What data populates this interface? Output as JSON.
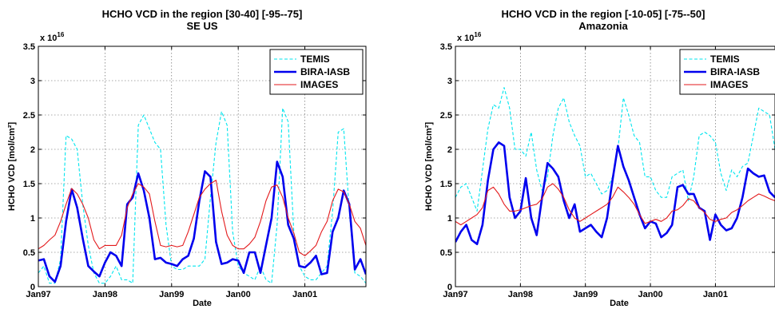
{
  "chart_data": [
    {
      "type": "line",
      "title": "HCHO VCD in the region [30-40] [-95--75]",
      "subtitle": "SE US",
      "xlabel": "Date",
      "ylabel": "HCHO VCD [mol/cm²]",
      "y_multiplier_label": "x 10",
      "y_multiplier_exp": "16",
      "x_unit": "months since Jan97",
      "xlim": [
        0,
        59
      ],
      "ylim": [
        0,
        3.5
      ],
      "x_ticks": [
        0,
        12,
        24,
        36,
        48
      ],
      "x_tick_labels": [
        "Jan97",
        "Jan98",
        "Jan99",
        "Jan00",
        "Jan01"
      ],
      "y_ticks": [
        0,
        0.5,
        1,
        1.5,
        2,
        2.5,
        3,
        3.5
      ],
      "y_tick_labels": [
        "0",
        "0.5",
        "1",
        "1.5",
        "2",
        "2.5",
        "3",
        "3.5"
      ],
      "grid": true,
      "legend_position": "top-right",
      "series": [
        {
          "name": "TEMIS",
          "color": "#00e5ee",
          "style": "dashed",
          "values": [
            0.2,
            0.3,
            0.05,
            0.05,
            0.4,
            2.2,
            2.15,
            2.0,
            1.2,
            0.6,
            0.2,
            0.05,
            0.05,
            0.15,
            0.3,
            0.1,
            0.1,
            0.05,
            2.35,
            2.5,
            2.3,
            2.1,
            2.0,
            0.9,
            0.3,
            0.25,
            0.25,
            0.3,
            0.3,
            0.3,
            0.4,
            1.3,
            2.1,
            2.55,
            2.35,
            0.8,
            0.3,
            0.2,
            0.15,
            0.1,
            0.3,
            0.1,
            0.05,
            0.9,
            2.6,
            2.4,
            0.8,
            0.3,
            0.15,
            0.1,
            0.1,
            0.2,
            0.3,
            1.1,
            2.25,
            2.3,
            1.1,
            0.2,
            0.15,
            0.05
          ]
        },
        {
          "name": "BIRA-IASB",
          "color": "#0000ee",
          "style": "solid",
          "values": [
            0.38,
            0.4,
            0.15,
            0.07,
            0.3,
            0.95,
            1.42,
            1.15,
            0.7,
            0.3,
            0.22,
            0.15,
            0.35,
            0.5,
            0.45,
            0.3,
            1.2,
            1.3,
            1.65,
            1.4,
            1.0,
            0.4,
            0.42,
            0.35,
            0.33,
            0.3,
            0.4,
            0.45,
            0.7,
            1.25,
            1.68,
            1.6,
            0.65,
            0.33,
            0.35,
            0.4,
            0.38,
            0.2,
            0.5,
            0.5,
            0.2,
            0.6,
            1.0,
            1.82,
            1.6,
            0.9,
            0.7,
            0.3,
            0.28,
            0.35,
            0.45,
            0.18,
            0.2,
            0.8,
            1.0,
            1.4,
            1.2,
            0.25,
            0.4,
            0.18
          ]
        },
        {
          "name": "IMAGES",
          "color": "#e31a1c",
          "style": "solid",
          "values": [
            0.55,
            0.6,
            0.68,
            0.75,
            0.95,
            1.2,
            1.43,
            1.35,
            1.2,
            1.0,
            0.68,
            0.55,
            0.6,
            0.6,
            0.6,
            0.75,
            1.15,
            1.35,
            1.5,
            1.45,
            1.35,
            0.95,
            0.6,
            0.58,
            0.6,
            0.58,
            0.6,
            0.8,
            1.05,
            1.3,
            1.42,
            1.5,
            1.55,
            1.1,
            0.75,
            0.6,
            0.55,
            0.55,
            0.62,
            0.72,
            0.95,
            1.25,
            1.45,
            1.48,
            1.3,
            1.0,
            0.78,
            0.5,
            0.45,
            0.52,
            0.6,
            0.8,
            0.95,
            1.25,
            1.42,
            1.38,
            1.2,
            0.95,
            0.85,
            0.6
          ]
        }
      ]
    },
    {
      "type": "line",
      "title": "HCHO VCD in the region [-10-05] [-75--50]",
      "subtitle": "Amazonia",
      "xlabel": "Date",
      "ylabel": "HCHO VCD [mol/cm²]",
      "y_multiplier_label": "x 10",
      "y_multiplier_exp": "16",
      "x_unit": "months since Jan97",
      "xlim": [
        0,
        59
      ],
      "ylim": [
        0,
        3.5
      ],
      "x_ticks": [
        0,
        12,
        24,
        36,
        48
      ],
      "x_tick_labels": [
        "Jan97",
        "Jan98",
        "Jan99",
        "Jan00",
        "Jan01"
      ],
      "y_ticks": [
        0,
        0.5,
        1,
        1.5,
        2,
        2.5,
        3,
        3.5
      ],
      "y_tick_labels": [
        "0",
        "0.5",
        "1",
        "1.5",
        "2",
        "2.5",
        "3",
        "3.5"
      ],
      "grid": true,
      "legend_position": "top-right",
      "series": [
        {
          "name": "TEMIS",
          "color": "#00e5ee",
          "style": "dashed",
          "values": [
            1.3,
            1.45,
            1.5,
            1.3,
            1.1,
            1.7,
            2.3,
            2.65,
            2.6,
            2.9,
            2.6,
            2.0,
            2.0,
            1.9,
            2.25,
            1.7,
            1.4,
            1.6,
            2.2,
            2.6,
            2.75,
            2.4,
            2.2,
            2.05,
            1.6,
            1.65,
            1.5,
            1.35,
            1.4,
            1.6,
            2.0,
            2.75,
            2.5,
            2.2,
            2.1,
            1.6,
            1.6,
            1.4,
            1.3,
            1.3,
            1.6,
            1.65,
            1.7,
            1.25,
            1.6,
            2.2,
            2.25,
            2.2,
            2.1,
            1.65,
            1.4,
            1.7,
            1.6,
            1.75,
            1.8,
            2.2,
            2.6,
            2.55,
            2.5,
            2.0
          ]
        },
        {
          "name": "BIRA-IASB",
          "color": "#0000ee",
          "style": "solid",
          "values": [
            0.65,
            0.8,
            0.9,
            0.68,
            0.62,
            0.9,
            1.55,
            2.0,
            2.1,
            2.05,
            1.3,
            1.0,
            1.1,
            1.58,
            1.0,
            0.75,
            1.3,
            1.8,
            1.72,
            1.6,
            1.25,
            1.0,
            1.2,
            0.8,
            0.85,
            0.9,
            0.8,
            0.72,
            1.0,
            1.55,
            2.05,
            1.75,
            1.55,
            1.3,
            1.05,
            0.85,
            0.95,
            0.92,
            0.72,
            0.78,
            0.9,
            1.45,
            1.48,
            1.35,
            1.35,
            1.15,
            1.1,
            0.68,
            1.05,
            0.9,
            0.82,
            0.85,
            1.0,
            1.3,
            1.72,
            1.65,
            1.6,
            1.62,
            1.38,
            1.3
          ]
        },
        {
          "name": "IMAGES",
          "color": "#e31a1c",
          "style": "solid",
          "values": [
            0.95,
            0.9,
            0.95,
            1.0,
            1.05,
            1.15,
            1.4,
            1.45,
            1.35,
            1.2,
            1.1,
            1.1,
            1.12,
            1.15,
            1.18,
            1.2,
            1.28,
            1.45,
            1.5,
            1.42,
            1.3,
            1.12,
            1.0,
            0.95,
            1.0,
            1.05,
            1.1,
            1.15,
            1.2,
            1.3,
            1.45,
            1.38,
            1.3,
            1.2,
            1.05,
            0.92,
            0.95,
            0.98,
            0.95,
            1.0,
            1.1,
            1.12,
            1.18,
            1.28,
            1.25,
            1.15,
            1.08,
            0.98,
            0.95,
            0.98,
            1.0,
            1.08,
            1.12,
            1.18,
            1.25,
            1.3,
            1.35,
            1.32,
            1.28,
            1.25
          ]
        }
      ]
    }
  ]
}
